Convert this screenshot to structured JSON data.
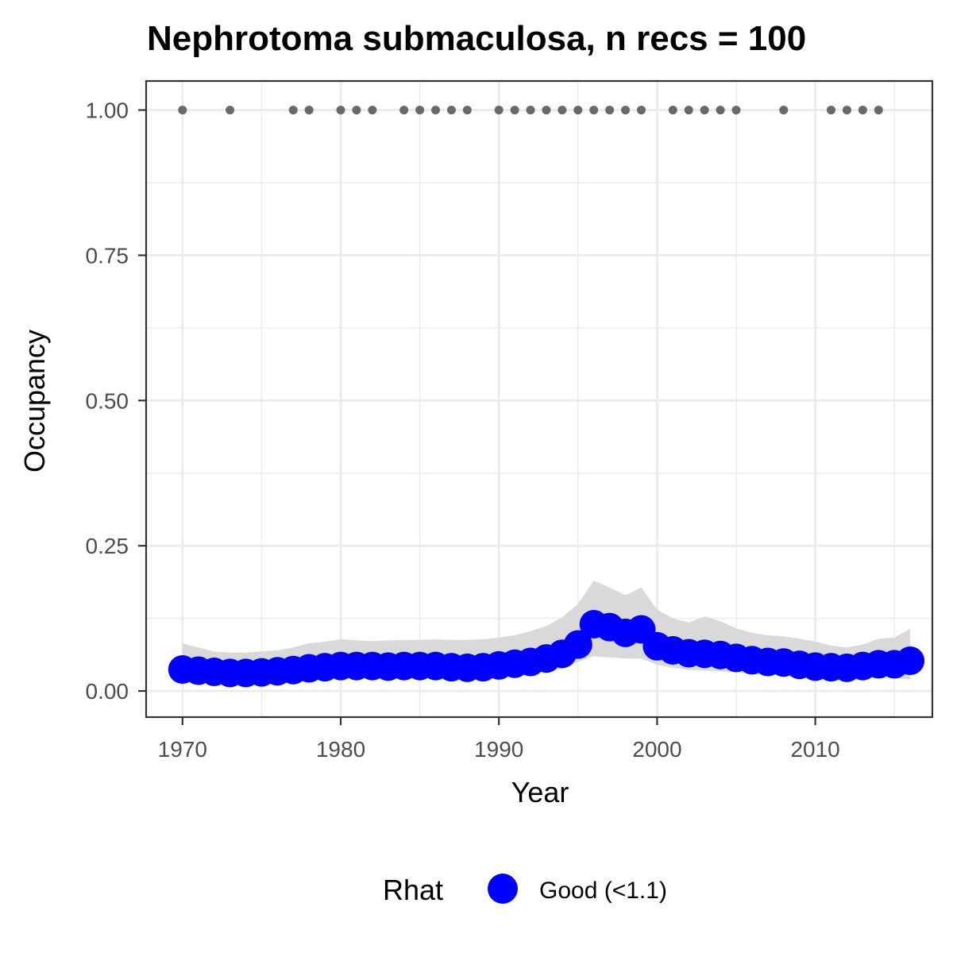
{
  "chart_data": {
    "type": "scatter",
    "title": "Nephrotoma submaculosa, n recs = 100",
    "xlabel": "Year",
    "ylabel": "Occupancy",
    "xlim": [
      1967.7,
      2017.4
    ],
    "ylim": [
      -0.045,
      1.05
    ],
    "x_ticks": [
      1970,
      1980,
      1990,
      2000,
      2010
    ],
    "x_tick_labels": [
      "1970",
      "1980",
      "1990",
      "2000",
      "2010"
    ],
    "y_ticks": [
      0,
      0.25,
      0.5,
      0.75,
      1
    ],
    "y_tick_labels": [
      "0.00",
      "0.25",
      "0.50",
      "0.75",
      "1.00"
    ],
    "grid": true,
    "legend": {
      "position": "bottom",
      "title": "Rhat",
      "entries": [
        {
          "label": "Good (<1.1)",
          "color": "#0000ff"
        }
      ]
    },
    "colors": {
      "points": "#0000ff",
      "ribbon": "#d9d9d9",
      "records": "#696969",
      "panel_border": "#333333",
      "grid": "#ebebeb"
    },
    "series": [
      {
        "role": "mean-occupancy",
        "x": [
          1970,
          1971,
          1972,
          1973,
          1974,
          1975,
          1976,
          1977,
          1978,
          1979,
          1980,
          1981,
          1982,
          1983,
          1984,
          1985,
          1986,
          1987,
          1988,
          1989,
          1990,
          1991,
          1992,
          1993,
          1994,
          1995,
          1996,
          1997,
          1998,
          1999,
          2000,
          2001,
          2002,
          2003,
          2004,
          2005,
          2006,
          2007,
          2008,
          2009,
          2010,
          2011,
          2012,
          2013,
          2014,
          2015,
          2016
        ],
        "y": [
          0.037,
          0.035,
          0.033,
          0.031,
          0.031,
          0.032,
          0.034,
          0.036,
          0.039,
          0.041,
          0.043,
          0.043,
          0.043,
          0.042,
          0.043,
          0.043,
          0.043,
          0.041,
          0.04,
          0.041,
          0.044,
          0.047,
          0.05,
          0.056,
          0.064,
          0.08,
          0.115,
          0.11,
          0.1,
          0.106,
          0.077,
          0.07,
          0.065,
          0.064,
          0.062,
          0.057,
          0.053,
          0.05,
          0.049,
          0.045,
          0.042,
          0.041,
          0.04,
          0.043,
          0.046,
          0.046,
          0.052
        ],
        "lower": [
          0.02,
          0.02,
          0.018,
          0.017,
          0.017,
          0.018,
          0.019,
          0.02,
          0.022,
          0.024,
          0.026,
          0.026,
          0.026,
          0.026,
          0.026,
          0.026,
          0.026,
          0.025,
          0.025,
          0.025,
          0.027,
          0.029,
          0.031,
          0.034,
          0.038,
          0.05,
          0.06,
          0.058,
          0.056,
          0.056,
          0.045,
          0.04,
          0.036,
          0.035,
          0.034,
          0.032,
          0.03,
          0.028,
          0.028,
          0.026,
          0.024,
          0.023,
          0.022,
          0.023,
          0.024,
          0.022,
          0.02
        ],
        "upper": [
          0.082,
          0.075,
          0.068,
          0.066,
          0.066,
          0.068,
          0.07,
          0.075,
          0.082,
          0.085,
          0.089,
          0.087,
          0.086,
          0.087,
          0.088,
          0.088,
          0.089,
          0.088,
          0.088,
          0.089,
          0.092,
          0.096,
          0.103,
          0.112,
          0.127,
          0.15,
          0.19,
          0.178,
          0.165,
          0.178,
          0.14,
          0.125,
          0.118,
          0.128,
          0.12,
          0.108,
          0.1,
          0.096,
          0.094,
          0.09,
          0.085,
          0.078,
          0.075,
          0.08,
          0.09,
          0.092,
          0.107
        ]
      },
      {
        "role": "records",
        "x": [
          1970,
          1973,
          1977,
          1978,
          1980,
          1981,
          1982,
          1984,
          1985,
          1986,
          1987,
          1988,
          1990,
          1991,
          1992,
          1993,
          1994,
          1995,
          1996,
          1997,
          1998,
          1999,
          2001,
          2002,
          2003,
          2004,
          2005,
          2008,
          2011,
          2012,
          2013,
          2014
        ],
        "y": [
          1,
          1,
          1,
          1,
          1,
          1,
          1,
          1,
          1,
          1,
          1,
          1,
          1,
          1,
          1,
          1,
          1,
          1,
          1,
          1,
          1,
          1,
          1,
          1,
          1,
          1,
          1,
          1,
          1,
          1,
          1,
          1
        ]
      }
    ]
  }
}
